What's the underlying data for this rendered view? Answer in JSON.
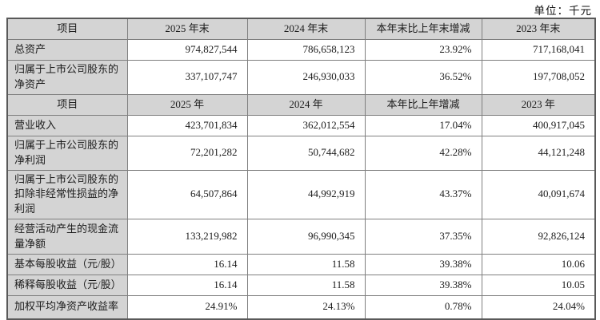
{
  "unit_label": "单位：千元",
  "table": {
    "sections": [
      {
        "header": [
          "项目",
          "2025 年末",
          "2024 年末",
          "本年末比上年末增减",
          "2023 年末"
        ],
        "rows": [
          {
            "label": "总资产",
            "values": [
              "974,827,544",
              "786,658,123",
              "23.92%",
              "717,168,041"
            ]
          },
          {
            "label": "归属于上市公司股东的净资产",
            "values": [
              "337,107,747",
              "246,930,033",
              "36.52%",
              "197,708,052"
            ]
          }
        ]
      },
      {
        "header": [
          "项目",
          "2025 年",
          "2024 年",
          "本年比上年增减",
          "2023 年"
        ],
        "rows": [
          {
            "label": "营业收入",
            "values": [
              "423,701,834",
              "362,012,554",
              "17.04%",
              "400,917,045"
            ]
          },
          {
            "label": "归属于上市公司股东的净利润",
            "values": [
              "72,201,282",
              "50,744,682",
              "42.28%",
              "44,121,248"
            ]
          },
          {
            "label": "归属于上市公司股东的扣除非经常性损益的净利润",
            "values": [
              "64,507,864",
              "44,992,919",
              "43.37%",
              "40,091,674"
            ]
          },
          {
            "label": "经营活动产生的现金流量净额",
            "values": [
              "133,219,982",
              "96,990,345",
              "37.35%",
              "92,826,124"
            ]
          },
          {
            "label": "基本每股收益（元/股）",
            "values": [
              "16.14",
              "11.58",
              "39.38%",
              "10.06"
            ]
          },
          {
            "label": "稀释每股收益（元/股）",
            "values": [
              "16.14",
              "11.58",
              "39.38%",
              "10.05"
            ]
          },
          {
            "label": "加权平均净资产收益率",
            "values": [
              "24.91%",
              "24.13%",
              "0.78%",
              "24.04%"
            ]
          }
        ]
      }
    ]
  }
}
